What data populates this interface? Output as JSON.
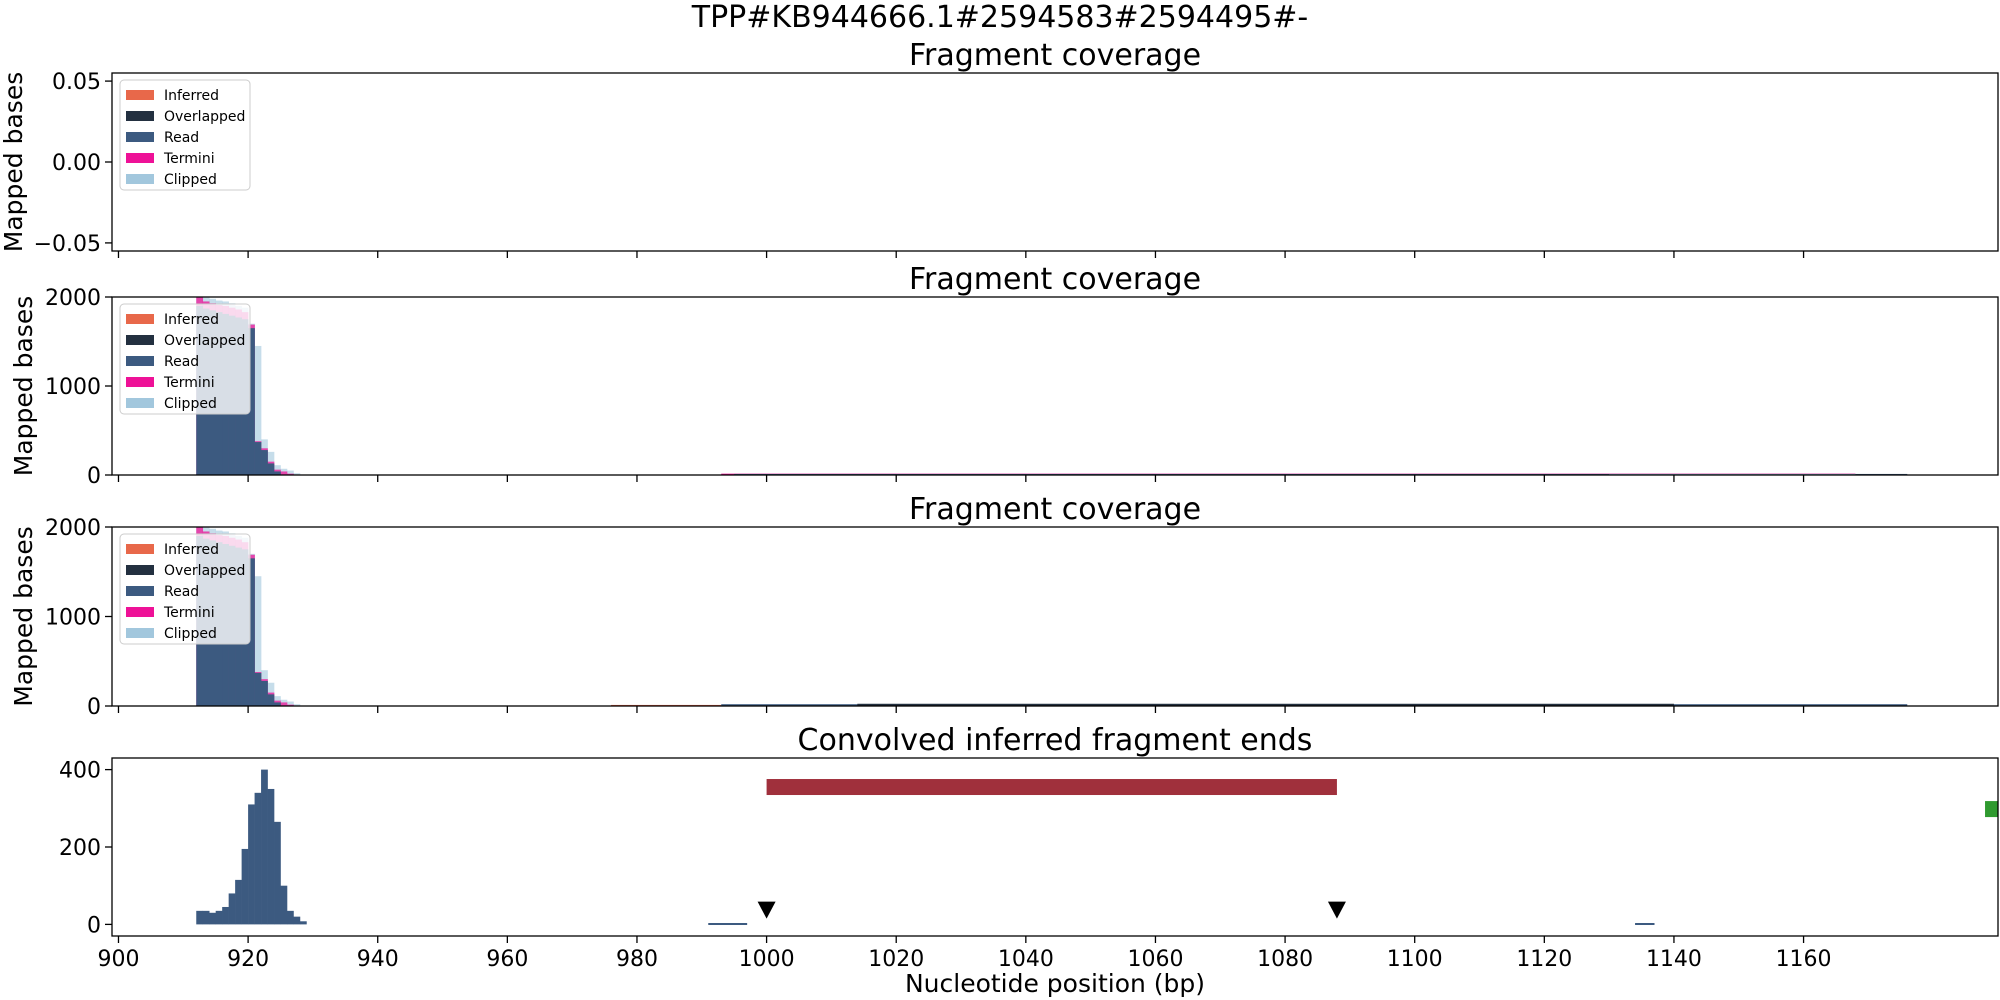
{
  "suptitle": "TPP#KB944666.1#2594583#2594495#-",
  "legend_entries": [
    {
      "label": "Inferred",
      "color": "#e8684a"
    },
    {
      "label": "Overlapped",
      "color": "#233040"
    },
    {
      "label": "Read",
      "color": "#3c5a80"
    },
    {
      "label": "Termini",
      "color": "#ee1197"
    },
    {
      "label": "Clipped",
      "color": "#98c1d9"
    }
  ],
  "chart_data": [
    {
      "type": "bar",
      "title": "Fragment coverage",
      "ylabel": "Mapped bases",
      "xlim": [
        899,
        1190
      ],
      "ylim": [
        -0.055,
        0.055
      ],
      "yticks": [
        -0.05,
        0.0,
        0.05
      ],
      "ytick_labels": [
        "−0.05",
        "0.00",
        "0.05"
      ],
      "legend": "top-left",
      "series": []
    },
    {
      "type": "bar",
      "title": "Fragment coverage",
      "ylabel": "Mapped bases",
      "xlim": [
        899,
        1190
      ],
      "ylim": [
        0,
        2000
      ],
      "yticks": [
        0,
        1000,
        2000
      ],
      "ytick_labels": [
        "0",
        "1000",
        "2000"
      ],
      "legend": "top-left",
      "series": [
        {
          "name": "Clipped",
          "color": "#98c1d9",
          "alpha": 0.55,
          "x": [
            912,
            913,
            914,
            915,
            916,
            917,
            918,
            919,
            920,
            921,
            922,
            923,
            924,
            925,
            926,
            927
          ],
          "values": [
            2050,
            2000,
            1980,
            1960,
            1950,
            1930,
            1900,
            1880,
            1700,
            1450,
            400,
            260,
            110,
            70,
            50,
            20
          ]
        },
        {
          "name": "Termini",
          "color": "#ee1197",
          "alpha": 0.75,
          "x": [
            912,
            913,
            914,
            915,
            916,
            917,
            918,
            919,
            920,
            921,
            922,
            923,
            924,
            925,
            926
          ],
          "values": [
            2000,
            1950,
            1930,
            1910,
            1900,
            1880,
            1860,
            1830,
            1690,
            380,
            300,
            150,
            60,
            40,
            15
          ]
        },
        {
          "name": "Read",
          "color": "#3c5a80",
          "alpha": 1,
          "x": [
            912,
            913,
            914,
            915,
            916,
            917,
            918,
            919,
            920,
            921,
            922,
            923,
            924
          ],
          "values": [
            1900,
            1870,
            1850,
            1830,
            1810,
            1790,
            1770,
            1750,
            1650,
            370,
            280,
            130,
            40
          ]
        }
      ],
      "low_bands": [
        {
          "color": "#ee1197",
          "from": 993,
          "to": 1168,
          "value": 15
        },
        {
          "color": "#3c5a80",
          "from": 995,
          "to": 1176,
          "value": 12
        },
        {
          "color": "#98c1d9",
          "from": 1130,
          "to": 1168,
          "value": 10
        }
      ]
    },
    {
      "type": "bar",
      "title": "Fragment coverage",
      "ylabel": "Mapped bases",
      "xlim": [
        899,
        1190
      ],
      "ylim": [
        0,
        2000
      ],
      "yticks": [
        0,
        1000,
        2000
      ],
      "ytick_labels": [
        "0",
        "1000",
        "2000"
      ],
      "legend": "top-left",
      "series": [
        {
          "name": "Clipped",
          "color": "#98c1d9",
          "alpha": 0.55,
          "x": [
            912,
            913,
            914,
            915,
            916,
            917,
            918,
            919,
            920,
            921,
            922,
            923,
            924,
            925,
            926,
            927
          ],
          "values": [
            2050,
            2000,
            1980,
            1960,
            1950,
            1930,
            1900,
            1880,
            1700,
            1450,
            400,
            260,
            110,
            70,
            50,
            20
          ]
        },
        {
          "name": "Termini",
          "color": "#ee1197",
          "alpha": 0.75,
          "x": [
            912,
            913,
            914,
            915,
            916,
            917,
            918,
            919,
            920,
            921,
            922,
            923,
            924,
            925,
            926
          ],
          "values": [
            2000,
            1950,
            1930,
            1910,
            1900,
            1880,
            1860,
            1830,
            1690,
            380,
            300,
            150,
            60,
            40,
            15
          ]
        },
        {
          "name": "Read",
          "color": "#3c5a80",
          "alpha": 1,
          "x": [
            912,
            913,
            914,
            915,
            916,
            917,
            918,
            919,
            920,
            921,
            922,
            923,
            924
          ],
          "values": [
            1900,
            1870,
            1850,
            1830,
            1810,
            1790,
            1770,
            1750,
            1650,
            370,
            280,
            130,
            40
          ]
        }
      ],
      "low_bands": [
        {
          "color": "#e8684a",
          "from": 976,
          "to": 993,
          "value": 12
        },
        {
          "color": "#3c5a80",
          "from": 993,
          "to": 1176,
          "value": 20
        },
        {
          "color": "#233040",
          "from": 1014,
          "to": 1140,
          "value": 25
        }
      ]
    },
    {
      "type": "bar",
      "title": "Convolved inferred fragment ends",
      "xlabel": "Nucleotide position (bp)",
      "xlim": [
        899,
        1190
      ],
      "ylim": [
        -30,
        430
      ],
      "yticks": [
        0,
        200,
        400
      ],
      "ytick_labels": [
        "0",
        "200",
        "400"
      ],
      "xticks": [
        900,
        920,
        940,
        960,
        980,
        1000,
        1020,
        1040,
        1060,
        1080,
        1100,
        1120,
        1140,
        1160
      ],
      "series": [
        {
          "name": "Inferred fragment ends",
          "color": "#3c5a80",
          "x": [
            912,
            913,
            914,
            915,
            916,
            917,
            918,
            919,
            920,
            921,
            922,
            923,
            924,
            925,
            926,
            927,
            928
          ],
          "values": [
            35,
            35,
            30,
            35,
            45,
            80,
            115,
            195,
            310,
            340,
            400,
            350,
            265,
            100,
            35,
            20,
            8
          ]
        }
      ],
      "extra_marks": [
        {
          "kind": "flat",
          "color": "#3c5a80",
          "from": 991,
          "to": 997,
          "value": 1
        },
        {
          "kind": "flat",
          "color": "#3c5a80",
          "from": 1134,
          "to": 1137,
          "value": 1
        },
        {
          "kind": "range_bar",
          "color": "#a0303c",
          "from": 1000,
          "to": 1088,
          "value": 355
        },
        {
          "kind": "range_bar",
          "color": "#2f9a2f",
          "from": 1188,
          "to": 1190,
          "value": 298
        },
        {
          "kind": "marker",
          "color": "#000000",
          "x": 1000,
          "value": 38
        },
        {
          "kind": "marker",
          "color": "#000000",
          "x": 1088,
          "value": 38
        }
      ]
    }
  ]
}
